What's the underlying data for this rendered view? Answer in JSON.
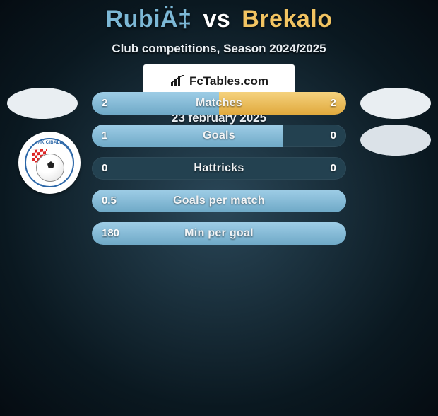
{
  "title": {
    "player1": "RubiÄ‡",
    "vs": "vs",
    "player2": "Brekalo",
    "color_p1": "#7cb8d6",
    "color_vs": "#ffffff",
    "color_p2": "#f2c462"
  },
  "subtitle": "Club competitions, Season 2024/2025",
  "logo_text": "HNK CIBALIA",
  "colors": {
    "bg_radial_inner": "#2a4758",
    "bg_radial_outer": "#0a1820",
    "bar_bg": "#234150",
    "bar_left_top": "#9ecde6",
    "bar_left_bottom": "#6fa9c7",
    "bar_right_top": "#f5d27e",
    "bar_right_bottom": "#e0a93d",
    "badge_bg": "#e9eef2",
    "brand_bg": "#ffffff",
    "text": "#ffffff"
  },
  "stats": [
    {
      "label": "Matches",
      "left_val": "2",
      "right_val": "2",
      "left_pct": 50,
      "right_pct": 50
    },
    {
      "label": "Goals",
      "left_val": "1",
      "right_val": "0",
      "left_pct": 75,
      "right_pct": 0
    },
    {
      "label": "Hattricks",
      "left_val": "0",
      "right_val": "0",
      "left_pct": 0,
      "right_pct": 0
    },
    {
      "label": "Goals per match",
      "left_val": "0.5",
      "right_val": "",
      "left_pct": 100,
      "right_pct": 0
    },
    {
      "label": "Min per goal",
      "left_val": "180",
      "right_val": "",
      "left_pct": 100,
      "right_pct": 0
    }
  ],
  "brand": "FcTables.com",
  "date": "23 february 2025"
}
